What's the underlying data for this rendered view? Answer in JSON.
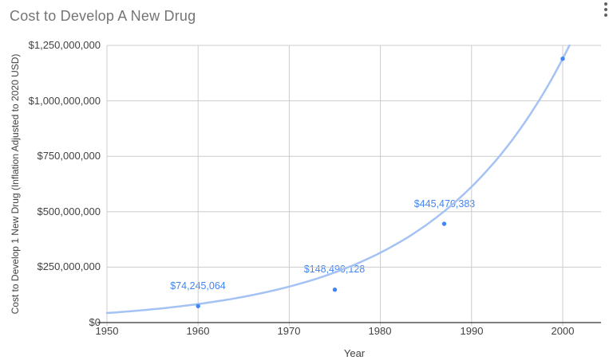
{
  "title": "Cost to Develop A New Drug",
  "icons": {
    "options": "more-vertical"
  },
  "colors": {
    "background": "#ffffff",
    "title_text": "#757575",
    "axis_text": "#424242",
    "gridline": "#cccccc",
    "axis_line": "#333333",
    "series": "#4285f4",
    "trendline": "#a4c2f4",
    "data_label": "#4285f4"
  },
  "chart_data": {
    "type": "scatter",
    "title": "Cost to Develop A New Drug",
    "xlabel": "Year",
    "ylabel": "Cost to Develop 1 New Drug (Inflation Adjusted to 2020 USD)",
    "xlim": [
      1950,
      2004
    ],
    "ylim": [
      0,
      1250000000
    ],
    "grid": true,
    "x_ticks": [
      1950,
      1960,
      1970,
      1980,
      1990,
      2000
    ],
    "x_tick_labels": [
      "1950",
      "1960",
      "1970",
      "1980",
      "1990",
      "2000"
    ],
    "y_ticks": [
      0,
      250000000,
      500000000,
      750000000,
      1000000000,
      1250000000
    ],
    "y_tick_labels": [
      "$0",
      "$250,000,000",
      "$500,000,000",
      "$750,000,000",
      "$1,000,000,000",
      "$1,250,000,000"
    ],
    "points": [
      {
        "x": 1960,
        "y": 74245064,
        "label": "$74,245,064"
      },
      {
        "x": 1975,
        "y": 148490128,
        "label": "$148,490,128"
      },
      {
        "x": 1987,
        "y": 445470383,
        "label": "$445,470,383"
      },
      {
        "x": 2000,
        "y": 1190000000,
        "label": ""
      }
    ],
    "trendline": {
      "type": "exponential",
      "value_at_1950": 43000000,
      "value_at_2000": 1190000000
    }
  }
}
